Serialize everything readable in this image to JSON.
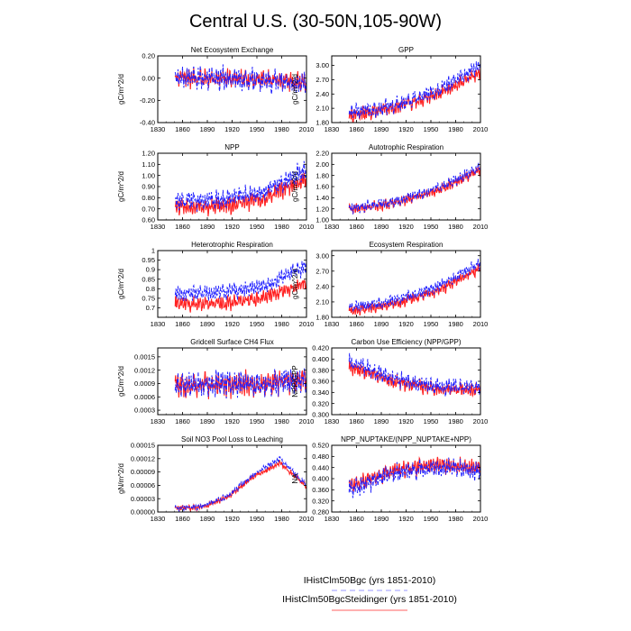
{
  "figure": {
    "title": "Central U.S. (30-50N,105-90W)",
    "legend": [
      {
        "label": "IHistClm50Bgc (yrs 1851-2010)",
        "color": "#2020ff",
        "dash": "dashed"
      },
      {
        "label": "IHistClm50BgcSteidinger (yrs 1851-2010)",
        "color": "#ff2020",
        "dash": "solid"
      }
    ]
  },
  "chart_data": [
    {
      "type": "line",
      "title": "Net Ecosystem Exchange",
      "ylabel": "gC/m^2/d",
      "xlim": [
        1830,
        2010
      ],
      "ylim": [
        -0.4,
        0.2
      ],
      "xticks": [
        "1830",
        "1860",
        "1890",
        "1920",
        "1950",
        "1980",
        "2010"
      ],
      "yticks": [
        "-0.40",
        "-0.20",
        "0.00",
        "0.20"
      ],
      "ytick_values": [
        -0.4,
        -0.2,
        0,
        0.2
      ],
      "years": [
        1851,
        2010
      ],
      "series": [
        {
          "color": "#2020ff",
          "trend": [
            0.0,
            0.0,
            -0.02,
            -0.05
          ],
          "amplitude": 0.12,
          "seed": 11
        },
        {
          "color": "#ff2020",
          "trend": [
            0.0,
            0.0,
            -0.01,
            -0.04
          ],
          "amplitude": 0.1,
          "seed": 12
        }
      ]
    },
    {
      "type": "line",
      "title": "GPP",
      "ylabel": "gC/m^2/d",
      "xlim": [
        1830,
        2010
      ],
      "ylim": [
        1.8,
        3.2
      ],
      "xticks": [
        "1830",
        "1860",
        "1890",
        "1920",
        "1950",
        "1980",
        "2010"
      ],
      "yticks": [
        "1.80",
        "2.10",
        "2.40",
        "2.70",
        "3.00"
      ],
      "ytick_values": [
        1.8,
        2.1,
        2.4,
        2.7,
        3.0
      ],
      "years": [
        1851,
        2010
      ],
      "series": [
        {
          "color": "#2020ff",
          "trend": [
            2.0,
            2.15,
            2.45,
            3.0
          ],
          "amplitude": 0.2,
          "seed": 21
        },
        {
          "color": "#ff2020",
          "trend": [
            1.95,
            2.1,
            2.38,
            2.85
          ],
          "amplitude": 0.18,
          "seed": 22
        }
      ]
    },
    {
      "type": "line",
      "title": "NPP",
      "ylabel": "gC/m^2/d",
      "xlim": [
        1830,
        2010
      ],
      "ylim": [
        0.6,
        1.2
      ],
      "xticks": [
        "1830",
        "1860",
        "1890",
        "1920",
        "1950",
        "1980",
        "2010"
      ],
      "yticks": [
        "0.60",
        "0.70",
        "0.80",
        "0.90",
        "1.00",
        "1.10",
        "1.20"
      ],
      "ytick_values": [
        0.6,
        0.7,
        0.8,
        0.9,
        1.0,
        1.1,
        1.2
      ],
      "years": [
        1851,
        2010
      ],
      "series": [
        {
          "color": "#2020ff",
          "trend": [
            0.77,
            0.78,
            0.85,
            1.05
          ],
          "amplitude": 0.1,
          "seed": 31
        },
        {
          "color": "#ff2020",
          "trend": [
            0.72,
            0.72,
            0.79,
            0.97
          ],
          "amplitude": 0.09,
          "seed": 32
        }
      ]
    },
    {
      "type": "line",
      "title": "Autotrophic Respiration",
      "ylabel": "gC/m^2/d",
      "xlim": [
        1830,
        2010
      ],
      "ylim": [
        1.0,
        2.2
      ],
      "xticks": [
        "1830",
        "1860",
        "1890",
        "1920",
        "1950",
        "1980",
        "2010"
      ],
      "yticks": [
        "1.00",
        "1.20",
        "1.40",
        "1.60",
        "1.80",
        "2.00",
        "2.20"
      ],
      "ytick_values": [
        1.0,
        1.2,
        1.4,
        1.6,
        1.8,
        2.0,
        2.2
      ],
      "years": [
        1851,
        2010
      ],
      "series": [
        {
          "color": "#2020ff",
          "trend": [
            1.2,
            1.32,
            1.55,
            1.95
          ],
          "amplitude": 0.12,
          "seed": 41
        },
        {
          "color": "#ff2020",
          "trend": [
            1.18,
            1.3,
            1.52,
            1.9
          ],
          "amplitude": 0.11,
          "seed": 42
        }
      ]
    },
    {
      "type": "line",
      "title": "Heterotrophic Respiration",
      "ylabel": "gC/m^2/d",
      "xlim": [
        1830,
        2010
      ],
      "ylim": [
        0.65,
        1.0
      ],
      "xticks": [
        "1830",
        "1860",
        "1890",
        "1920",
        "1950",
        "1980",
        "2010"
      ],
      "yticks": [
        "0.7",
        "0.75",
        "0.8",
        "0.85",
        "0.9",
        "0.95",
        "1"
      ],
      "ytick_values": [
        0.7,
        0.75,
        0.8,
        0.85,
        0.9,
        0.95,
        1.0
      ],
      "years": [
        1851,
        2010
      ],
      "series": [
        {
          "color": "#2020ff",
          "trend": [
            0.77,
            0.78,
            0.81,
            0.92
          ],
          "amplitude": 0.05,
          "seed": 51
        },
        {
          "color": "#ff2020",
          "trend": [
            0.72,
            0.72,
            0.75,
            0.83
          ],
          "amplitude": 0.045,
          "seed": 52
        }
      ]
    },
    {
      "type": "line",
      "title": "Ecosystem Respiration",
      "ylabel": "gC/m^2/d",
      "xlim": [
        1830,
        2010
      ],
      "ylim": [
        1.8,
        3.1
      ],
      "xticks": [
        "1830",
        "1860",
        "1890",
        "1920",
        "1950",
        "1980",
        "2010"
      ],
      "yticks": [
        "1.80",
        "2.10",
        "2.40",
        "2.70",
        "3.00"
      ],
      "ytick_values": [
        1.8,
        2.1,
        2.4,
        2.7,
        3.0
      ],
      "years": [
        1851,
        2010
      ],
      "series": [
        {
          "color": "#2020ff",
          "trend": [
            1.97,
            2.12,
            2.38,
            2.85
          ],
          "amplitude": 0.13,
          "seed": 61
        },
        {
          "color": "#ff2020",
          "trend": [
            1.92,
            2.05,
            2.3,
            2.75
          ],
          "amplitude": 0.12,
          "seed": 62
        }
      ]
    },
    {
      "type": "line",
      "title": "Gridcell Surface CH4 Flux",
      "ylabel": "gC/m^2/d",
      "xlim": [
        1830,
        2010
      ],
      "ylim": [
        0.0002,
        0.0017
      ],
      "xticks": [
        "1830",
        "1860",
        "1890",
        "1920",
        "1950",
        "1980",
        "2010"
      ],
      "yticks": [
        "0.0003",
        "0.0006",
        "0.0009",
        "0.0012",
        "0.0015"
      ],
      "ytick_values": [
        0.0003,
        0.0006,
        0.0009,
        0.0012,
        0.0015
      ],
      "years": [
        1851,
        2010
      ],
      "series": [
        {
          "color": "#2020ff",
          "trend": [
            0.00085,
            0.0009,
            0.0009,
            0.001
          ],
          "amplitude": 0.00035,
          "seed": 71
        },
        {
          "color": "#ff2020",
          "trend": [
            0.00083,
            0.00088,
            0.00088,
            0.00098
          ],
          "amplitude": 0.00033,
          "seed": 72
        }
      ]
    },
    {
      "type": "line",
      "title": "Carbon Use Efficiency (NPP/GPP)",
      "ylabel": "NPP/GPP",
      "xlim": [
        1830,
        2010
      ],
      "ylim": [
        0.3,
        0.42
      ],
      "xticks": [
        "1830",
        "1860",
        "1890",
        "1920",
        "1950",
        "1980",
        "2010"
      ],
      "yticks": [
        "0.300",
        "0.320",
        "0.340",
        "0.360",
        "0.380",
        "0.400",
        "0.420"
      ],
      "ytick_values": [
        0.3,
        0.32,
        0.34,
        0.36,
        0.38,
        0.4,
        0.42
      ],
      "years": [
        1851,
        2010
      ],
      "series": [
        {
          "color": "#2020ff",
          "trend": [
            0.395,
            0.365,
            0.35,
            0.35
          ],
          "amplitude": 0.017,
          "seed": 81
        },
        {
          "color": "#ff2020",
          "trend": [
            0.385,
            0.36,
            0.345,
            0.345
          ],
          "amplitude": 0.015,
          "seed": 82
        }
      ]
    },
    {
      "type": "line",
      "title": "Soil NO3 Pool Loss to Leaching",
      "ylabel": "gN/m^2/d",
      "xlim": [
        1830,
        2010
      ],
      "ylim": [
        0,
        0.00015
      ],
      "xticks": [
        "1830",
        "1860",
        "1890",
        "1920",
        "1950",
        "1980",
        "2010"
      ],
      "yticks": [
        "0.00000",
        "0.00003",
        "0.00006",
        "0.00009",
        "0.00012",
        "0.00015"
      ],
      "ytick_values": [
        0,
        3e-05,
        6e-05,
        9e-05,
        0.00012,
        0.00015
      ],
      "years": [
        1851,
        2010
      ],
      "series": [
        {
          "color": "#2020ff",
          "trend": [
            8e-06,
            1.2e-05,
            3.5e-05,
            8.5e-05,
            0.00012,
            6e-05
          ],
          "amplitude": 8e-06,
          "seed": 91
        },
        {
          "color": "#ff2020",
          "trend": [
            8e-06,
            1.1e-05,
            3.3e-05,
            8e-05,
            0.00011,
            5.8e-05
          ],
          "amplitude": 7e-06,
          "seed": 92
        }
      ]
    },
    {
      "type": "line",
      "title": "NPP_NUPTAKE/(NPP_NUPTAKE+NPP)",
      "ylabel": "NA",
      "xlim": [
        1830,
        2010
      ],
      "ylim": [
        0.28,
        0.52
      ],
      "xticks": [
        "1830",
        "1860",
        "1890",
        "1920",
        "1950",
        "1980",
        "2010"
      ],
      "yticks": [
        "0.280",
        "0.320",
        "0.360",
        "0.400",
        "0.440",
        "0.480",
        "0.520"
      ],
      "ytick_values": [
        0.28,
        0.32,
        0.36,
        0.4,
        0.44,
        0.48,
        0.52
      ],
      "years": [
        1851,
        2010
      ],
      "series": [
        {
          "color": "#2020ff",
          "trend": [
            0.36,
            0.42,
            0.44,
            0.43
          ],
          "amplitude": 0.04,
          "seed": 101
        },
        {
          "color": "#ff2020",
          "trend": [
            0.37,
            0.43,
            0.45,
            0.44
          ],
          "amplitude": 0.035,
          "seed": 102
        }
      ]
    }
  ]
}
